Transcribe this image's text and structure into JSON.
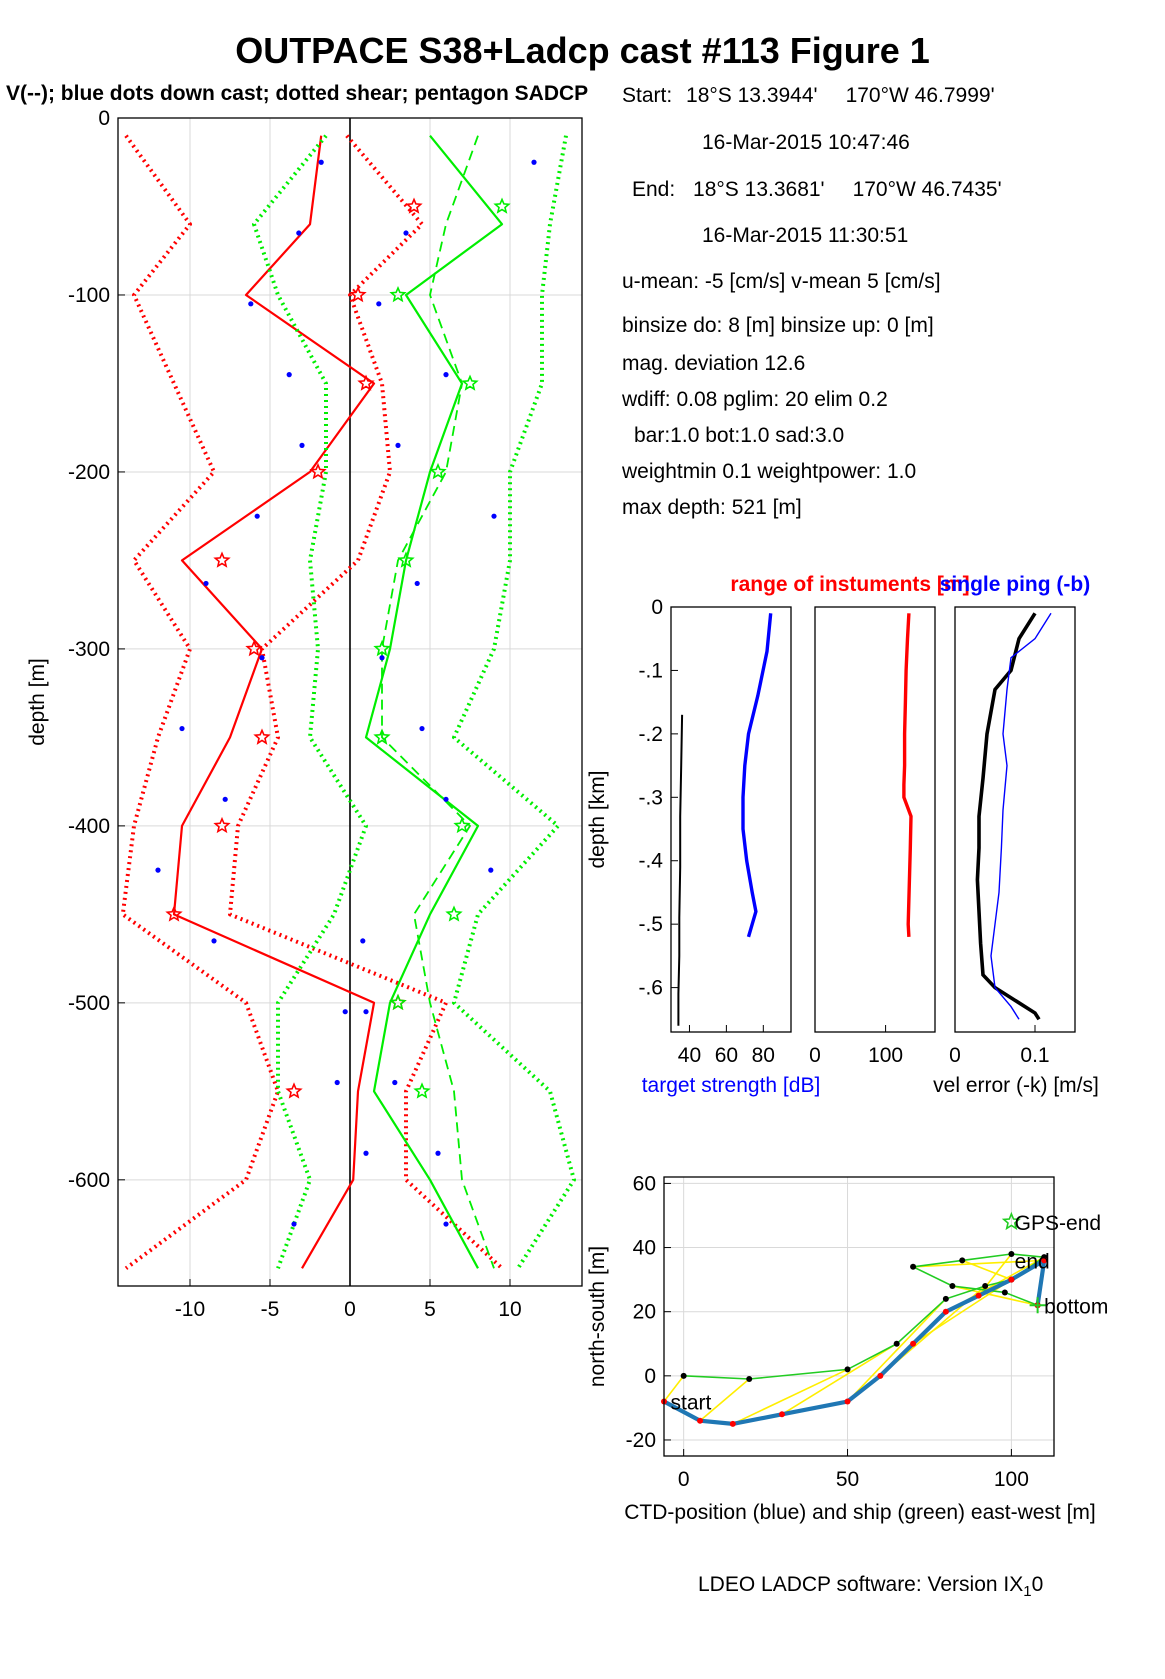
{
  "header": {
    "title": "OUTPACE S38+Ladcp cast #113  Figure 1",
    "subtitle": "V(--); blue dots down cast; dotted shear; pentagon SADCP"
  },
  "cast_info": {
    "start_label": "Start:",
    "start_lat": "18°S 13.3944'",
    "start_lon": "170°W 46.7999'",
    "start_time": "16-Mar-2015 10:47:46",
    "end_label": "End:",
    "end_lat": "18°S 13.3681'",
    "end_lon": "170°W 46.7435'",
    "end_time": "16-Mar-2015 11:30:51",
    "means": "u-mean:  -5 [cm/s]    v-mean   5 [cm/s]",
    "binsize": "binsize do: 8 [m]  binsize up:  0 [m]",
    "mag_dev": "mag. deviation 12.6",
    "params1": "wdiff: 0.08  pglim: 20  elim 0.2",
    "params2": "bar:1.0 bot:1.0 sad:3.0",
    "weights": "weightmin 0.1  weightpower: 1.0",
    "max_depth": "max depth: 521 [m]"
  },
  "footer": {
    "software": "LDEO LADCP software: Version IX",
    "version_sub": "1",
    "version_tail": "0"
  },
  "colors": {
    "u_profile": "#ff0000",
    "v_profile": "#00ee00",
    "down_dots": "#0000ff",
    "ctd_track": "#1f77b4",
    "ship_track": "#22cc22",
    "link": "#ffee00",
    "axis": "#000000",
    "grid": "#d9d9d9"
  },
  "chart_data": [
    {
      "type": "line",
      "ylabel": "depth [m]",
      "xlim": [
        -14.5,
        14.5
      ],
      "ylim": [
        -660,
        0
      ],
      "x_ticks": [
        -10,
        -5,
        0,
        5,
        10
      ],
      "y_ticks": [
        0,
        -100,
        -200,
        -300,
        -400,
        -500,
        -600
      ],
      "depth": [
        -10,
        -60,
        -100,
        -150,
        -200,
        -250,
        -300,
        -350,
        -400,
        -450,
        -500,
        -550,
        -600,
        -650
      ],
      "series": [
        {
          "component": "u",
          "style": "solid",
          "values": [
            -1.8,
            -2.5,
            -6.5,
            1.5,
            -2.5,
            -10.5,
            -5.5,
            -7.5,
            -10.5,
            -11.0,
            1.5,
            0.5,
            0.2,
            -3.0
          ]
        },
        {
          "component": "u",
          "style": "dotted",
          "values": [
            -14.0,
            -10.0,
            -13.5,
            -11.0,
            -8.5,
            -13.5,
            -10.0,
            -12.0,
            -13.5,
            -14.2,
            -6.5,
            -4.5,
            -6.5,
            -14.0
          ]
        },
        {
          "component": "u",
          "style": "dotted",
          "values": [
            -0.2,
            4.5,
            0.0,
            2.0,
            2.5,
            0.5,
            -5.5,
            -4.5,
            -7.0,
            -7.5,
            6.0,
            3.5,
            3.5,
            9.5
          ]
        },
        {
          "component": "v",
          "style": "solid",
          "values": [
            5.0,
            9.5,
            3.5,
            7.0,
            5.0,
            3.5,
            2.5,
            1.0,
            8.0,
            5.0,
            2.5,
            1.5,
            5.0,
            8.0
          ]
        },
        {
          "component": "v",
          "style": "dashed",
          "values": [
            8.0,
            6.0,
            5.0,
            7.0,
            6.0,
            3.0,
            2.0,
            2.0,
            7.5,
            4.0,
            5.0,
            6.5,
            7.0,
            9.0
          ]
        },
        {
          "component": "v",
          "style": "dotted",
          "values": [
            13.5,
            12.5,
            12.0,
            12.0,
            10.0,
            10.0,
            9.0,
            6.5,
            13.0,
            8.0,
            6.5,
            12.5,
            14.0,
            10.5
          ]
        },
        {
          "component": "v",
          "style": "dotted",
          "values": [
            -1.5,
            -6.0,
            -4.5,
            -1.5,
            -1.5,
            -2.5,
            -2.0,
            -2.5,
            1.0,
            -1.0,
            -4.5,
            -4.5,
            -2.5,
            -4.5
          ]
        }
      ],
      "down_cast_dots": {
        "depth": [
          -25,
          -65,
          -105,
          -145,
          -185,
          -225,
          -263,
          -305,
          -345,
          -385,
          -425,
          -465,
          -505,
          -545,
          -585,
          -625
        ],
        "u": [
          -1.8,
          -3.2,
          -6.2,
          -3.8,
          -3.0,
          -5.8,
          -9.0,
          -5.5,
          -10.5,
          -7.8,
          -12.0,
          -8.5,
          1.0,
          -0.8,
          1.0,
          -3.5
        ],
        "v": [
          11.5,
          3.5,
          1.8,
          6.0,
          3.0,
          9.0,
          4.2,
          2.0,
          4.5,
          6.0,
          8.8,
          0.8,
          -0.3,
          2.8,
          5.5,
          6.0
        ]
      },
      "sadcp_pentagons": {
        "depth": [
          -50,
          -100,
          -150,
          -200,
          -250,
          -300,
          -350,
          -400,
          -450,
          -500,
          -550
        ],
        "u": [
          4.0,
          0.5,
          1.0,
          -2.0,
          -8.0,
          -6.0,
          -5.5,
          -8.0,
          -11.0,
          3.0,
          -3.5
        ],
        "v": [
          9.5,
          3.0,
          7.5,
          5.5,
          3.5,
          2.0,
          2.0,
          7.0,
          6.5,
          3.0,
          4.5
        ]
      }
    },
    {
      "type": "line",
      "title": "range of instuments [m]",
      "ylabel": "depth [km]",
      "xlabel": "target strength [dB]",
      "xlim": [
        30,
        95
      ],
      "ylim": [
        -0.67,
        0
      ],
      "x_ticks": [
        40,
        60,
        80
      ],
      "y_ticks": [
        0,
        -0.1,
        -0.2,
        -0.3,
        -0.4,
        -0.5,
        -0.6
      ],
      "series": [
        {
          "color": "blue",
          "x": [
            84,
            82,
            77,
            72,
            70,
            69,
            69,
            71,
            74,
            76,
            74,
            72
          ],
          "y": [
            -0.01,
            -0.07,
            -0.14,
            -0.2,
            -0.25,
            -0.3,
            -0.35,
            -0.4,
            -0.45,
            -0.48,
            -0.5,
            -0.52
          ]
        },
        {
          "color": "black",
          "x": [
            36,
            35.5,
            35,
            35,
            34.5,
            34.5,
            34,
            34
          ],
          "y": [
            -0.17,
            -0.25,
            -0.33,
            -0.41,
            -0.49,
            -0.55,
            -0.61,
            -0.66
          ]
        }
      ]
    },
    {
      "type": "line",
      "xlim": [
        0,
        170
      ],
      "ylim": [
        -0.67,
        0
      ],
      "x_ticks": [
        0,
        100
      ],
      "series": [
        {
          "color": "red",
          "x": [
            133,
            131,
            129,
            128,
            127,
            127,
            126,
            126,
            136,
            135,
            134,
            133,
            132,
            133
          ],
          "y": [
            -0.01,
            -0.05,
            -0.1,
            -0.15,
            -0.2,
            -0.25,
            -0.28,
            -0.3,
            -0.33,
            -0.38,
            -0.42,
            -0.46,
            -0.5,
            -0.52
          ]
        }
      ]
    },
    {
      "type": "line",
      "title": "single ping (-b)",
      "xlabel": "vel error (-k) [m/s]",
      "xlim": [
        0,
        0.15
      ],
      "ylim": [
        -0.67,
        0
      ],
      "x_ticks": [
        0,
        0.1
      ],
      "series": [
        {
          "color": "black",
          "x": [
            0.1,
            0.08,
            0.07,
            0.05,
            0.04,
            0.035,
            0.03,
            0.03,
            0.028,
            0.03,
            0.032,
            0.035,
            0.05,
            0.1,
            0.105
          ],
          "y": [
            -0.01,
            -0.05,
            -0.1,
            -0.13,
            -0.2,
            -0.27,
            -0.33,
            -0.38,
            -0.43,
            -0.48,
            -0.53,
            -0.58,
            -0.6,
            -0.64,
            -0.65
          ]
        },
        {
          "color": "blue",
          "x": [
            0.12,
            0.1,
            0.07,
            0.065,
            0.06,
            0.065,
            0.06,
            0.058,
            0.055,
            0.05,
            0.045,
            0.05,
            0.07,
            0.08
          ],
          "y": [
            -0.01,
            -0.05,
            -0.08,
            -0.13,
            -0.2,
            -0.25,
            -0.32,
            -0.38,
            -0.45,
            -0.5,
            -0.55,
            -0.6,
            -0.63,
            -0.65
          ]
        }
      ]
    },
    {
      "type": "line",
      "ylabel": "north-south [m]",
      "xlabel": "CTD-position (blue) and ship (green) east-west [m]",
      "xlim": [
        -6,
        113
      ],
      "ylim": [
        -25,
        62
      ],
      "x_ticks": [
        0,
        50,
        100
      ],
      "y_ticks": [
        60,
        40,
        20,
        0,
        -20
      ],
      "labels": {
        "start": "start",
        "end": "end",
        "bottom": "bottom",
        "gps_end": "GPS-end"
      },
      "series": [
        {
          "name": "CTD",
          "x": [
            -6,
            5,
            15,
            30,
            50,
            60,
            70,
            80,
            90,
            100,
            110,
            108
          ],
          "y": [
            -8,
            -14,
            -15,
            -12,
            -8,
            0,
            10,
            20,
            25,
            30,
            36,
            22
          ]
        },
        {
          "name": "ship",
          "x": [
            0,
            20,
            50,
            65,
            80,
            92,
            100,
            110,
            100,
            85,
            70,
            82,
            98,
            108
          ],
          "y": [
            0,
            -1,
            2,
            10,
            24,
            28,
            30,
            37,
            38,
            36,
            34,
            28,
            26,
            22
          ]
        }
      ]
    }
  ]
}
